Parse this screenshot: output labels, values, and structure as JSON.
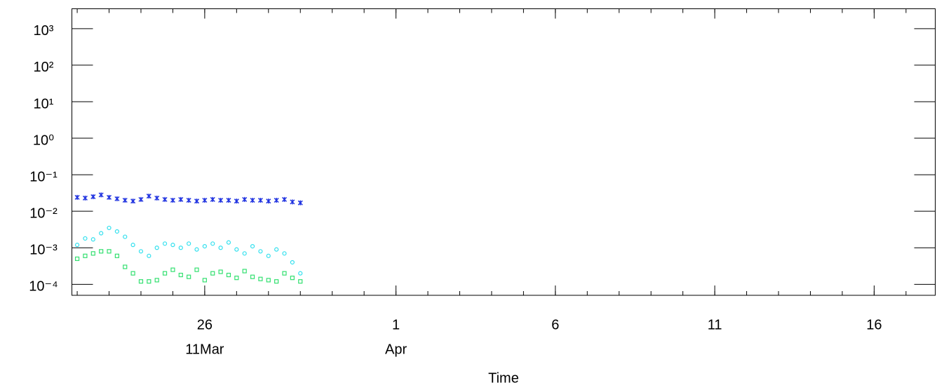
{
  "chart_data": {
    "type": "scatter",
    "xlabel": "Time",
    "x": [
      "03-22 00:00",
      "03-22 06:00",
      "03-22 12:00",
      "03-22 18:00",
      "03-23 00:00",
      "03-23 06:00",
      "03-23 12:00",
      "03-23 18:00",
      "03-24 00:00",
      "03-24 06:00",
      "03-24 12:00",
      "03-24 18:00",
      "03-25 00:00",
      "03-25 06:00",
      "03-25 12:00",
      "03-25 18:00",
      "03-26 00:00",
      "03-26 06:00",
      "03-26 12:00",
      "03-26 18:00",
      "03-27 00:00",
      "03-27 06:00",
      "03-27 12:00",
      "03-27 18:00",
      "03-28 00:00",
      "03-28 06:00",
      "03-28 12:00",
      "03-28 18:00",
      "03-29 00:00"
    ],
    "series": [
      {
        "color": "#1f32e0",
        "marker": "x",
        "values": [
          0.024,
          0.023,
          0.025,
          0.028,
          0.024,
          0.022,
          0.02,
          0.019,
          0.021,
          0.026,
          0.023,
          0.021,
          0.02,
          0.021,
          0.02,
          0.019,
          0.02,
          0.021,
          0.02,
          0.02,
          0.019,
          0.021,
          0.02,
          0.02,
          0.019,
          0.02,
          0.021,
          0.018,
          0.017
        ]
      },
      {
        "color": "#33e0ee",
        "marker": "circle",
        "values": [
          0.0012,
          0.0018,
          0.0017,
          0.0025,
          0.0035,
          0.0028,
          0.002,
          0.0012,
          0.0008,
          0.0006,
          0.001,
          0.0013,
          0.0012,
          0.001,
          0.0013,
          0.0009,
          0.0011,
          0.0013,
          0.001,
          0.0014,
          0.0009,
          0.0007,
          0.0011,
          0.0008,
          0.0006,
          0.0009,
          0.0007,
          0.0004,
          0.0002
        ]
      },
      {
        "color": "#33e070",
        "marker": "square",
        "values": [
          0.0005,
          0.0006,
          0.0007,
          0.0008,
          0.0008,
          0.0006,
          0.0003,
          0.0002,
          0.00012,
          0.00012,
          0.00013,
          0.0002,
          0.00025,
          0.00018,
          0.00016,
          0.00025,
          0.00013,
          0.0002,
          0.00022,
          0.00018,
          0.00015,
          0.00023,
          0.00016,
          0.00014,
          0.00013,
          0.00012,
          0.0002,
          0.00015,
          0.00012
        ]
      }
    ],
    "log_y": true,
    "ylim": [
      5e-05,
      3500
    ],
    "yticks": [
      {
        "value": 0.0001,
        "label": "10⁻⁴"
      },
      {
        "value": 0.001,
        "label": "10⁻³"
      },
      {
        "value": 0.01,
        "label": "10⁻²"
      },
      {
        "value": 0.1,
        "label": "10⁻¹"
      },
      {
        "value": 1,
        "label": "10⁰"
      },
      {
        "value": 10,
        "label": "10¹"
      },
      {
        "value": 100,
        "label": "10²"
      },
      {
        "value": 1000,
        "label": "10³"
      }
    ],
    "xlim": [
      "03-21 20:00",
      "04-17 22:00"
    ],
    "xticks": [
      {
        "value": "03-26 00:00",
        "label": "26"
      },
      {
        "value": "04-01 00:00",
        "label": "1"
      },
      {
        "value": "04-06 00:00",
        "label": "6"
      },
      {
        "value": "04-11 00:00",
        "label": "11"
      },
      {
        "value": "04-16 00:00",
        "label": "16"
      }
    ],
    "month_labels": [
      {
        "at": "03-26 00:00",
        "label": "11Mar"
      },
      {
        "at": "04-01 00:00",
        "label": "Apr"
      }
    ]
  }
}
